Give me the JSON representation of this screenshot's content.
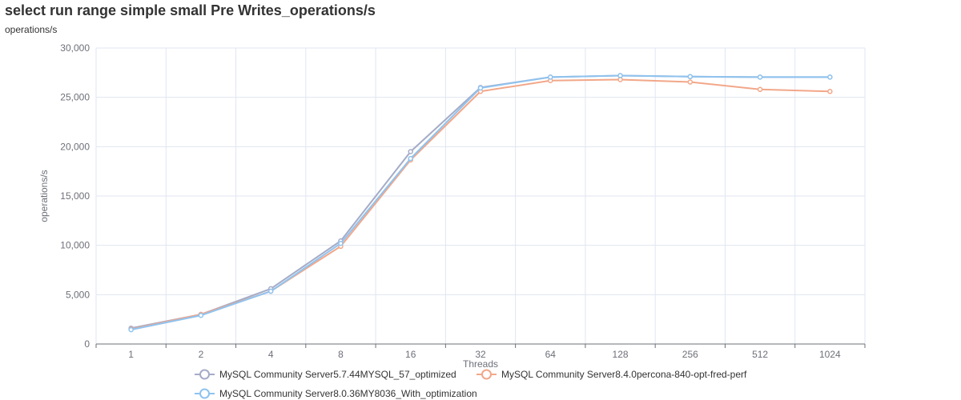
{
  "chart_data": {
    "type": "line",
    "title": "select run range simple small Pre Writes_operations/s",
    "subtitle": "operations/s",
    "xlabel": "Threads",
    "ylabel": "operations/s",
    "categories": [
      "1",
      "2",
      "4",
      "8",
      "16",
      "32",
      "64",
      "128",
      "256",
      "512",
      "1024"
    ],
    "ylim": [
      0,
      30000
    ],
    "yticks": [
      0,
      5000,
      10000,
      15000,
      20000,
      25000,
      30000
    ],
    "ytick_labels": [
      "0",
      "5,000",
      "10,000",
      "15,000",
      "20,000",
      "25,000",
      "30,000"
    ],
    "grid": true,
    "legend_position": "bottom",
    "series": [
      {
        "name": "MySQL Community Server5.7.44MYSQL_57_optimized",
        "color": "#a5abc7",
        "values": [
          1600,
          3000,
          5600,
          10450,
          19500,
          26000,
          27050,
          27200,
          27100,
          27050,
          27050
        ]
      },
      {
        "name": "MySQL Community Server8.4.0percona-840-opt-fred-perf",
        "color": "#f2a789",
        "values": [
          1500,
          3000,
          5350,
          9900,
          18650,
          25600,
          26700,
          26800,
          26550,
          25800,
          25600
        ]
      },
      {
        "name": "MySQL Community Server8.0.36MY8036_With_optimization",
        "color": "#8fc3ef",
        "values": [
          1450,
          2900,
          5350,
          10200,
          18800,
          25950,
          27050,
          27200,
          27100,
          27050,
          27050
        ]
      }
    ]
  }
}
